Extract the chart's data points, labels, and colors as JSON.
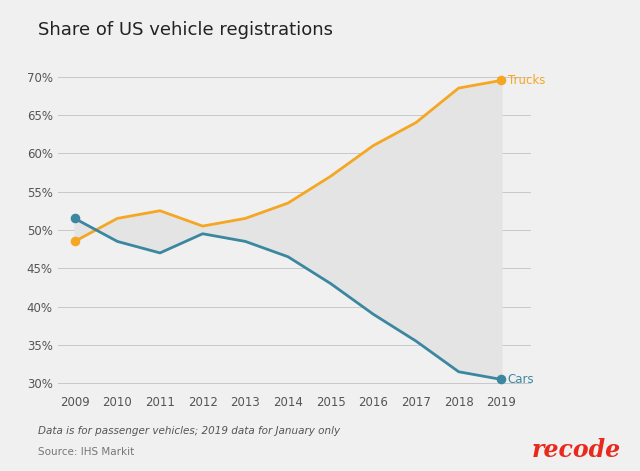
{
  "title": "Share of US vehicle registrations",
  "years": [
    2009,
    2010,
    2011,
    2012,
    2013,
    2014,
    2015,
    2016,
    2017,
    2018,
    2019
  ],
  "trucks": [
    48.5,
    51.5,
    52.5,
    50.5,
    51.5,
    53.5,
    57.0,
    61.0,
    64.0,
    68.5,
    69.5
  ],
  "cars": [
    51.5,
    48.5,
    47.0,
    49.5,
    48.5,
    46.5,
    43.0,
    39.0,
    35.5,
    31.5,
    30.5
  ],
  "trucks_color": "#f5a623",
  "cars_color": "#3c87a0",
  "fill_color": "#e4e4e4",
  "bg_color": "#f0f0f0",
  "plot_bg_color": "#f0f0f0",
  "trucks_label": "Trucks",
  "cars_label": "Cars",
  "ylim_min": 29,
  "ylim_max": 72,
  "yticks": [
    30,
    35,
    40,
    45,
    50,
    55,
    60,
    65,
    70
  ],
  "footnote1": "Data is for passenger vehicles; 2019 data for January only",
  "footnote2": "Source: IHS Markit",
  "recode_color": "#e8291c",
  "line_width": 2.0,
  "dot_size": 35
}
